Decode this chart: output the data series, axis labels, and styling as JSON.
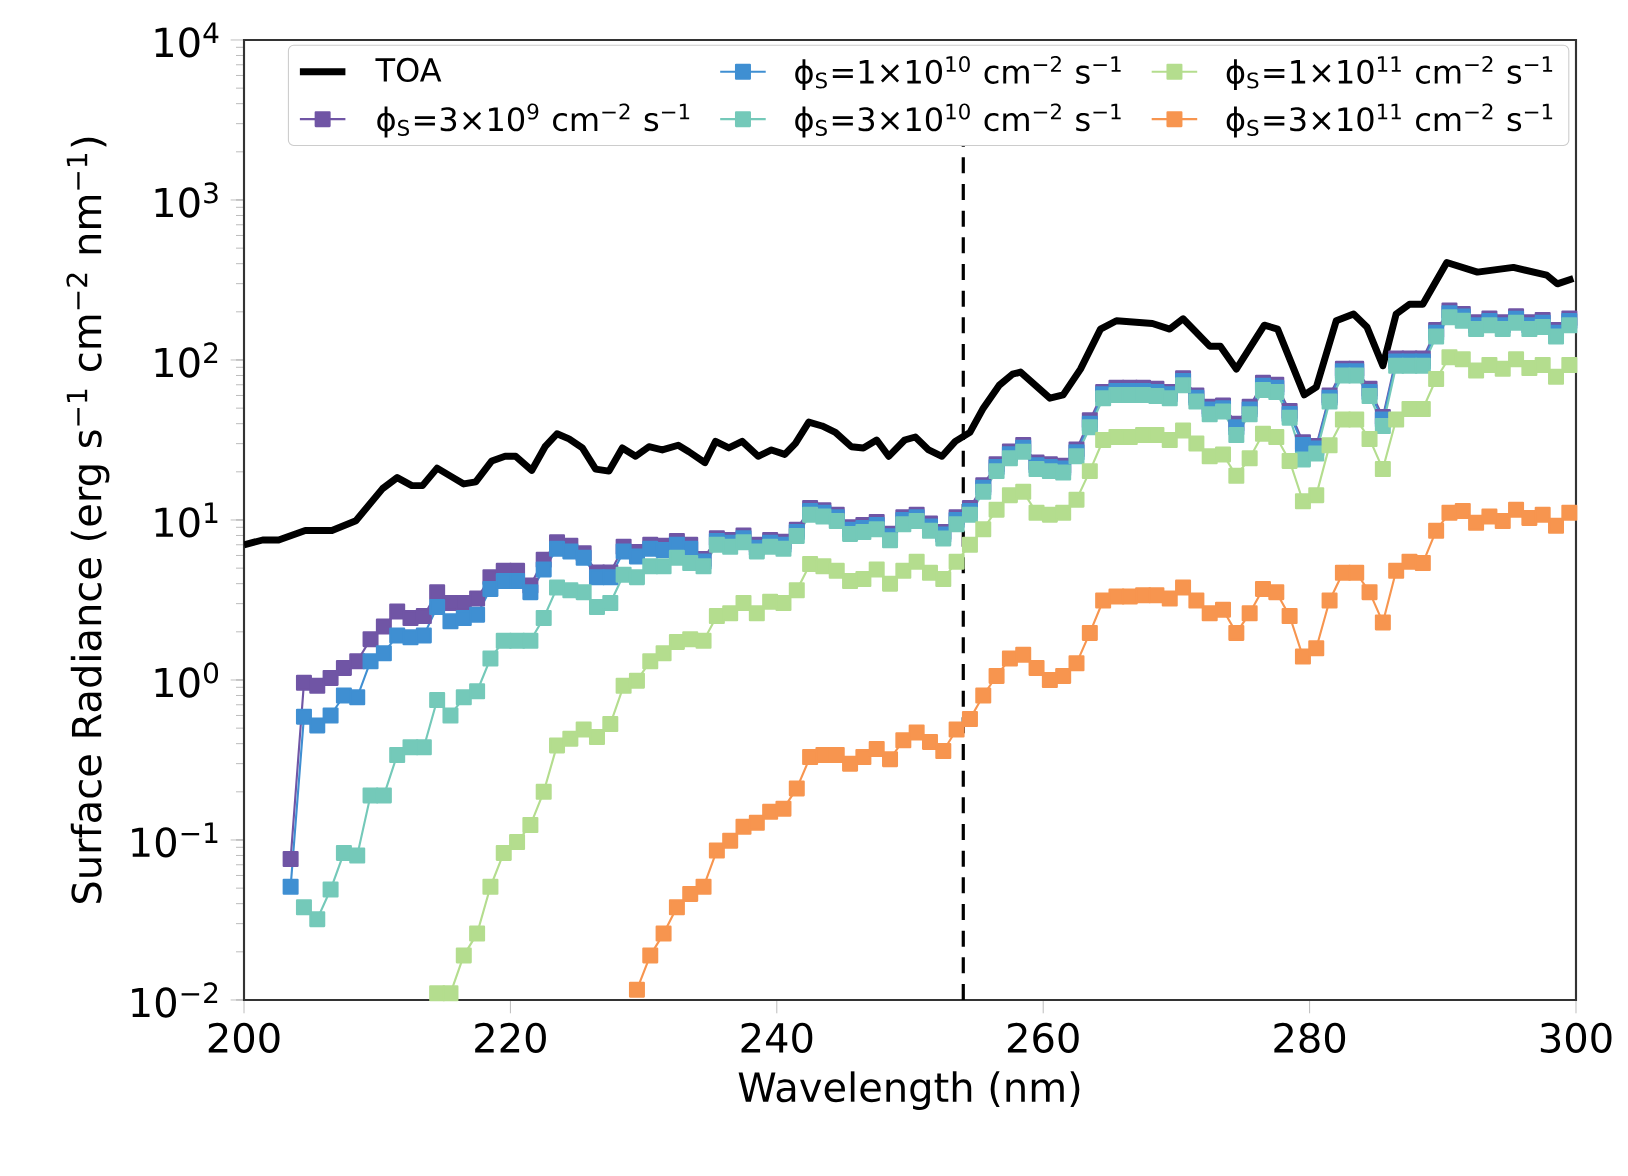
{
  "chart_data": {
    "type": "line",
    "xlabel": "Wavelength (nm)",
    "ylabel": "Surface Radiance (erg s$^{−1}$ cm$^{−2}$ nm$^{−1}$)",
    "xlim": [
      200,
      300
    ],
    "xticks": [
      200,
      220,
      240,
      260,
      280,
      300
    ],
    "ylim": [
      0.01,
      10000
    ],
    "yticks": [
      {
        "value": 0.01,
        "label": "10$^{−2}$"
      },
      {
        "value": 0.1,
        "label": "10$^{−1}$"
      },
      {
        "value": 1,
        "label": "10$^{0}$"
      },
      {
        "value": 10,
        "label": "10$^{1}$"
      },
      {
        "value": 100,
        "label": "10$^{2}$"
      },
      {
        "value": 1000,
        "label": "10$^{3}$"
      },
      {
        "value": 10000,
        "label": "10$^{4}$"
      }
    ],
    "log": "y",
    "legend": "top right",
    "ref_lines": [
      {
        "axis": "x",
        "value": 254,
        "color": "#000000",
        "line_style": "dashed"
      }
    ],
    "x": [
      203.5,
      204.5,
      205.5,
      206.5,
      207.5,
      208.5,
      209.5,
      210.5,
      211.5,
      212.5,
      213.5,
      214.5,
      215.5,
      216.5,
      217.5,
      218.5,
      219.5,
      220.5,
      221.5,
      222.5,
      223.5,
      224.5,
      225.5,
      226.5,
      227.5,
      228.5,
      229.5,
      230.5,
      231.5,
      232.5,
      233.5,
      234.5,
      235.5,
      236.5,
      237.5,
      238.5,
      239.5,
      240.5,
      241.5,
      242.5,
      243.5,
      244.5,
      245.5,
      246.5,
      247.5,
      248.5,
      249.5,
      250.5,
      251.5,
      252.5,
      253.5,
      254.5,
      255.5,
      256.5,
      257.5,
      258.5,
      259.5,
      260.5,
      261.5,
      262.5,
      263.5,
      264.5,
      265.5,
      266.5,
      267.5,
      268.5,
      269.5,
      270.5,
      271.5,
      272.5,
      273.5,
      274.5,
      275.5,
      276.5,
      277.5,
      278.5,
      279.5,
      280.5,
      281.5,
      282.5,
      283.5,
      284.5,
      285.5,
      286.5,
      287.5,
      288.5,
      289.5,
      290.5,
      291.5,
      292.5,
      293.5,
      294.5,
      295.5,
      296.5,
      297.5,
      298.5,
      299.5
    ],
    "series": [
      {
        "name": "TOA",
        "color": "#000000",
        "marker": "none",
        "x": [
          200,
          201.4,
          202.6,
          204.6,
          206.6,
          208.4,
          210.4,
          211.5,
          212.6,
          213.4,
          214.5,
          215.6,
          216.5,
          217.4,
          218.6,
          219.6,
          220.4,
          221.6,
          222.6,
          223.5,
          224.4,
          225.4,
          226.4,
          227.4,
          228.4,
          229.4,
          230.4,
          231.4,
          232.6,
          233.4,
          234.6,
          235.4,
          236.4,
          237.4,
          238.6,
          239.6,
          240.6,
          241.4,
          242.4,
          243.4,
          244.4,
          245.6,
          246.5,
          247.5,
          248.4,
          249.6,
          250.4,
          251.4,
          252.4,
          253.4,
          254.5,
          255.5,
          256.7,
          257.7,
          258.3,
          260.5,
          261.5,
          262.8,
          264.3,
          265.5,
          268.2,
          269.5,
          270.5,
          272.5,
          273.3,
          274.5,
          276.6,
          277.6,
          279.6,
          280.5,
          282,
          283.3,
          284.3,
          285.5,
          286.5,
          287.5,
          288.5,
          290.3,
          292.6,
          295.3,
          297.8,
          298.6,
          299.8
        ],
        "values": [
          7.0,
          7.5,
          7.5,
          8.6,
          8.6,
          9.9,
          15.7,
          18.4,
          16.4,
          16.4,
          21.1,
          18.6,
          16.8,
          17.3,
          23.4,
          25,
          25,
          20.4,
          28.7,
          34.6,
          32.1,
          28.2,
          20.8,
          20.2,
          28.2,
          25,
          28.7,
          27.4,
          29.3,
          26.7,
          22.8,
          31,
          28.2,
          31,
          25,
          27.4,
          25.7,
          30.1,
          40.9,
          38.7,
          35.3,
          28.7,
          28.2,
          31.6,
          25,
          31.6,
          33,
          27.4,
          25,
          31,
          35.3,
          50,
          69.5,
          81.5,
          84,
          57.7,
          60.5,
          87.7,
          156,
          176,
          169,
          156,
          181,
          122,
          122,
          87.7,
          165,
          156,
          60.5,
          67.6,
          176,
          194,
          161,
          92,
          194,
          223,
          223,
          407,
          354,
          379,
          339,
          299,
          323
        ]
      },
      {
        "name": "ϕ$_{S}$=3×10$^{9}$ cm$^{−2}$ s$^{−1}$",
        "color": "#7055a5",
        "marker": "square",
        "values": [
          0.076,
          0.96,
          0.92,
          1.03,
          1.19,
          1.31,
          1.8,
          2.16,
          2.68,
          2.44,
          2.51,
          3.54,
          3.03,
          3.03,
          3.23,
          4.39,
          4.81,
          4.81,
          3.89,
          5.64,
          7.25,
          6.9,
          6.2,
          4.7,
          4.7,
          6.8,
          6.3,
          7.0,
          6.9,
          7.4,
          7.0,
          5.7,
          7.7,
          7.5,
          8.0,
          7.0,
          7.5,
          7.3,
          8.7,
          11.9,
          11.5,
          10.8,
          9.0,
          9.3,
          9.7,
          8.2,
          10.4,
          10.8,
          9.5,
          8.4,
          10.4,
          11.9,
          16.5,
          22.3,
          26.8,
          29.4,
          22.9,
          22.3,
          21.8,
          27.6,
          42,
          63,
          67,
          67,
          67,
          66,
          63,
          77,
          60,
          51,
          52,
          40,
          51,
          72,
          70,
          48,
          30.6,
          29,
          60,
          88,
          88,
          66,
          44,
          102,
          102,
          102,
          154,
          204,
          194,
          172,
          182,
          172,
          188,
          172,
          178,
          154,
          182
        ]
      },
      {
        "name": "ϕ$_{S}$=1×10$^{10}$ cm$^{−2}$ s$^{−1}$",
        "color": "#3f8fd2",
        "marker": "square",
        "values": [
          0.051,
          0.59,
          0.52,
          0.6,
          0.8,
          0.78,
          1.31,
          1.47,
          1.9,
          1.85,
          1.9,
          2.86,
          2.33,
          2.44,
          2.56,
          3.71,
          4.15,
          4.15,
          3.54,
          4.91,
          6.6,
          6.36,
          5.8,
          4.39,
          4.39,
          6.36,
          5.92,
          6.6,
          6.5,
          7.0,
          6.6,
          5.5,
          7.4,
          7.2,
          7.7,
          6.7,
          7.2,
          7.0,
          8.4,
          11.4,
          11.1,
          10.4,
          8.7,
          8.9,
          9.3,
          7.9,
          10.0,
          10.4,
          9.1,
          8.1,
          10.0,
          11.4,
          15.9,
          21.4,
          25.8,
          28.3,
          22.0,
          21.4,
          21.0,
          26.5,
          40,
          61,
          64,
          64,
          64,
          63,
          61,
          74,
          58,
          49,
          50,
          38,
          49,
          69,
          67,
          46,
          29.4,
          28,
          58,
          85,
          85,
          63,
          42.5,
          98,
          98,
          98,
          148,
          196,
          187,
          165,
          175,
          165,
          181,
          165,
          171,
          148,
          175
        ]
      },
      {
        "name": "ϕ$_{S}$=3×10$^{10}$ cm$^{−2}$ s$^{−1}$",
        "color": "#74c9b9",
        "marker": "square",
        "values": [
          null,
          0.038,
          0.032,
          0.049,
          0.083,
          0.08,
          0.19,
          0.19,
          0.34,
          0.38,
          0.38,
          0.75,
          0.6,
          0.78,
          0.85,
          1.36,
          1.76,
          1.76,
          1.76,
          2.44,
          3.78,
          3.64,
          3.54,
          2.86,
          3.03,
          4.55,
          4.39,
          5.14,
          5.14,
          5.8,
          5.38,
          5.14,
          7.0,
          6.8,
          7.25,
          6.36,
          6.8,
          6.6,
          7.95,
          10.8,
          10.5,
          9.86,
          8.18,
          8.4,
          8.75,
          7.46,
          9.4,
          9.86,
          8.57,
          7.67,
          9.4,
          10.8,
          15,
          20.2,
          24.3,
          26.7,
          20.8,
          20.2,
          19.8,
          25,
          38,
          57.7,
          60.5,
          60.5,
          60.5,
          59.5,
          57.7,
          69.5,
          55,
          45.8,
          47.6,
          34,
          45.8,
          65,
          63,
          43.6,
          23.9,
          26,
          55,
          80,
          80,
          59.5,
          38.7,
          92,
          92,
          92,
          140,
          185,
          176,
          156,
          165,
          156,
          171,
          156,
          161,
          140,
          165
        ]
      },
      {
        "name": "ϕ$_{S}$=1×10$^{11}$ cm$^{−2}$ s$^{−1}$",
        "color": "#b4dd8e",
        "marker": "square",
        "values": [
          null,
          null,
          null,
          null,
          null,
          null,
          null,
          null,
          null,
          null,
          null,
          0.011,
          0.011,
          0.019,
          0.026,
          0.051,
          0.083,
          0.097,
          0.124,
          0.2,
          0.39,
          0.43,
          0.49,
          0.44,
          0.53,
          0.92,
          0.99,
          1.31,
          1.47,
          1.73,
          1.8,
          1.76,
          2.51,
          2.61,
          3.03,
          2.61,
          3.08,
          3.03,
          3.64,
          5.3,
          5.14,
          4.81,
          4.15,
          4.27,
          4.91,
          4.0,
          4.81,
          5.49,
          4.68,
          4.27,
          5.49,
          7.0,
          8.75,
          11.6,
          14.3,
          15,
          11.1,
          10.8,
          11.1,
          13.4,
          20.2,
          31.6,
          33,
          33,
          34,
          34,
          31.6,
          36.3,
          30.1,
          25,
          25.7,
          18.9,
          24.3,
          34.6,
          33,
          23.4,
          13.1,
          14.3,
          29.3,
          42.5,
          42.5,
          32.1,
          20.8,
          42.5,
          49.4,
          49.4,
          76,
          104,
          101,
          86,
          93,
          88,
          101,
          89,
          93,
          78.5,
          93
        ]
      },
      {
        "name": "ϕ$_{S}$=3×10$^{11}$ cm$^{−2}$ s$^{−1}$",
        "color": "#f7954f",
        "marker": "square",
        "values": [
          null,
          null,
          null,
          null,
          null,
          null,
          null,
          null,
          null,
          null,
          null,
          null,
          null,
          null,
          null,
          null,
          null,
          null,
          null,
          null,
          null,
          null,
          null,
          null,
          null,
          null,
          0.0116,
          0.019,
          0.026,
          0.038,
          0.046,
          0.051,
          0.086,
          0.099,
          0.121,
          0.128,
          0.15,
          0.157,
          0.21,
          0.33,
          0.34,
          0.34,
          0.3,
          0.33,
          0.37,
          0.32,
          0.42,
          0.47,
          0.41,
          0.36,
          0.49,
          0.57,
          0.8,
          1.06,
          1.36,
          1.44,
          1.19,
          1.0,
          1.06,
          1.27,
          1.97,
          3.14,
          3.32,
          3.32,
          3.39,
          3.39,
          3.23,
          3.78,
          3.14,
          2.61,
          2.75,
          1.97,
          2.61,
          3.71,
          3.54,
          2.51,
          1.4,
          1.58,
          3.14,
          4.68,
          4.68,
          3.54,
          2.29,
          4.81,
          5.49,
          5.38,
          8.57,
          11.1,
          11.4,
          9.6,
          10.5,
          9.86,
          11.6,
          10.3,
          10.8,
          9.2,
          11.1
        ]
      }
    ]
  }
}
